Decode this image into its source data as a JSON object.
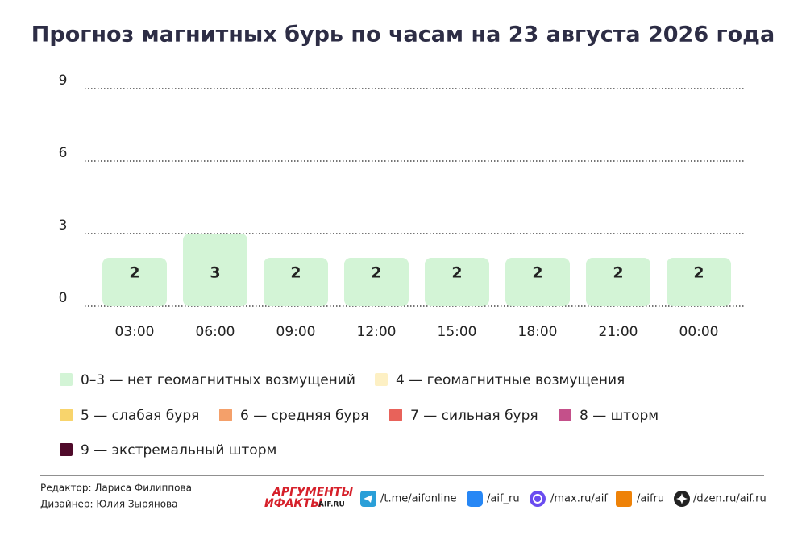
{
  "chart_data": {
    "type": "bar",
    "title": "Прогноз магнитных бурь по часам на 23 августа 2026 года",
    "categories": [
      "03:00",
      "06:00",
      "09:00",
      "12:00",
      "15:00",
      "18:00",
      "21:00",
      "00:00"
    ],
    "values": [
      2,
      3,
      2,
      2,
      2,
      2,
      2,
      2
    ],
    "color": "#d3f4d6",
    "ylim": [
      0,
      9
    ],
    "yticks": [
      0,
      3,
      6,
      9
    ],
    "grid": true,
    "legend": [
      {
        "label": "0–3 — нет геомагнитных возмущений",
        "color": "#d3f4d6"
      },
      {
        "label": "4 — геомагнитные возмущения",
        "color": "#fdf0c4"
      },
      {
        "label": "5 — слабая буря",
        "color": "#f8d46c"
      },
      {
        "label": "6 — средняя буря",
        "color": "#f4a06a"
      },
      {
        "label": "7 — сильная буря",
        "color": "#e8625a"
      },
      {
        "label": "8 — шторм",
        "color": "#c4508a"
      },
      {
        "label": "9 — экстремальный шторм",
        "color": "#4f0a2a"
      }
    ]
  },
  "footer": {
    "editor": "Редактор: Лариса Филиппова",
    "designer": "Дизайнер: Юлия Зырянова",
    "logo": {
      "line1": "АРГУМЕНТЫ",
      "line2": "ИФАКТЫ",
      "site": "AIF.RU"
    },
    "links": [
      "/t.me/aifonline",
      "/aif_ru",
      "/max.ru/aif",
      "/aifru",
      "/dzen.ru/aif.ru"
    ]
  }
}
